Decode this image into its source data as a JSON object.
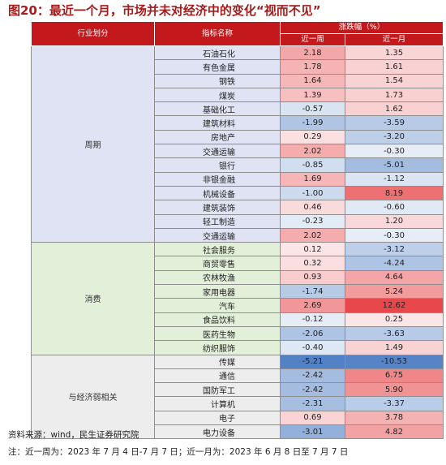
{
  "title": "图20：最近一个月，市场并未对经济中的变化“视而不见”",
  "header": {
    "sector": "行业划分",
    "indicator": "指标名称",
    "change": "涨跌幅（%）",
    "week": "近一周",
    "month": "近一月"
  },
  "groups": [
    {
      "name": "周期",
      "color": "#dfe3f3",
      "rows": [
        {
          "name": "石油石化",
          "week": "2.18",
          "month": "1.35"
        },
        {
          "name": "有色金属",
          "week": "1.78",
          "month": "1.61"
        },
        {
          "name": "钢铁",
          "week": "1.64",
          "month": "1.54"
        },
        {
          "name": "煤炭",
          "week": "1.39",
          "month": "1.73"
        },
        {
          "name": "基础化工",
          "week": "-0.57",
          "month": "1.62"
        },
        {
          "name": "建筑材料",
          "week": "-1.99",
          "month": "-3.59"
        },
        {
          "name": "房地产",
          "week": "0.29",
          "month": "-3.20"
        },
        {
          "name": "交通运输",
          "week": "2.02",
          "month": "-0.30"
        },
        {
          "name": "银行",
          "week": "-0.85",
          "month": "-5.01"
        },
        {
          "name": "非银金融",
          "week": "1.69",
          "month": "-1.12"
        },
        {
          "name": "机械设备",
          "week": "-1.00",
          "month": "8.19"
        },
        {
          "name": "建筑装饰",
          "week": "0.46",
          "month": "-0.60"
        },
        {
          "name": "轻工制造",
          "week": "-0.23",
          "month": "1.20"
        },
        {
          "name": "交通运输",
          "week": "2.02",
          "month": "-0.30"
        }
      ]
    },
    {
      "name": "消费",
      "color": "#e2efd9",
      "rows": [
        {
          "name": "社会服务",
          "week": "0.12",
          "month": "-3.12"
        },
        {
          "name": "商贸零售",
          "week": "0.32",
          "month": "-4.24"
        },
        {
          "name": "农林牧渔",
          "week": "0.93",
          "month": "4.64"
        },
        {
          "name": "家用电器",
          "week": "-1.74",
          "month": "5.24"
        },
        {
          "name": "汽车",
          "week": "2.69",
          "month": "12.62"
        },
        {
          "name": "食品饮料",
          "week": "-0.12",
          "month": "0.25"
        },
        {
          "name": "医药生物",
          "week": "-2.06",
          "month": "-3.63"
        },
        {
          "name": "纺织服饰",
          "week": "-0.40",
          "month": "1.49"
        }
      ]
    },
    {
      "name": "与经济弱相关",
      "color": "#ededed",
      "rows": [
        {
          "name": "传媒",
          "week": "-5.21",
          "month": "-10.53"
        },
        {
          "name": "通信",
          "week": "-2.42",
          "month": "6.75"
        },
        {
          "name": "国防军工",
          "week": "-2.42",
          "month": "5.90"
        },
        {
          "name": "计算机",
          "week": "-2.31",
          "month": "-3.37"
        },
        {
          "name": "电子",
          "week": "0.69",
          "month": "3.78"
        },
        {
          "name": "电力设备",
          "week": "-3.01",
          "month": "4.82"
        }
      ]
    }
  ],
  "colors": {
    "header": "#c3181c",
    "title": "#a51c1c",
    "positive": "#e8484b",
    "negative": "#4f7fc4"
  },
  "notes": {
    "source": "资料来源：wind，民生证券研究院",
    "remark": "注：近一周为：2023 年 7 月 4 日-7 月 7 日；近一月为：2023 年 6 月 8 日至 7 月 7 日"
  }
}
